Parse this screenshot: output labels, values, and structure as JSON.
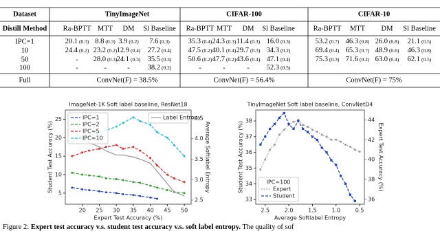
{
  "table": {
    "corner": "Dataset",
    "groups": [
      "TinyImageNet",
      "CIFAR-100",
      "CIFAR-10"
    ],
    "method_label": "Distill Method",
    "methods": [
      "Ra-BPTT",
      "MTT",
      "DM",
      "Sl Baseline",
      "Ra-BPTT",
      "MTT",
      "DM",
      "Sl Baseline",
      "Ra-BPTT",
      "MTT",
      "DM",
      "Sl Baseline"
    ],
    "rows": [
      {
        "label": "IPC=1",
        "cells": [
          [
            "20.1",
            "(0.3)"
          ],
          [
            "8.8",
            "(0.3)"
          ],
          [
            "3.9",
            "(0.2)"
          ],
          [
            "7.6",
            "(0.3)"
          ],
          [
            "35.3",
            "(0.4)"
          ],
          [
            "24.3",
            "(0.3)"
          ],
          [
            "11.4",
            "(0.3)"
          ],
          [
            "16.0",
            "(0.3)"
          ],
          [
            "53.2",
            "(0.7)"
          ],
          [
            "46.3",
            "(0.8)"
          ],
          [
            "26.0",
            "(0.8)"
          ],
          [
            "21.1",
            "(0.5)"
          ]
        ]
      },
      {
        "label": "10",
        "cells": [
          [
            "24.4",
            "(0.2)"
          ],
          [
            "23.2",
            "(0.2)"
          ],
          [
            "12.9",
            "(0.4)"
          ],
          [
            "27.2",
            "(0.4)"
          ],
          [
            "47.5",
            "(0.2)"
          ],
          [
            "40.1",
            "(0.4)"
          ],
          [
            "29.7",
            "(0.3)"
          ],
          [
            "34.3",
            "(0.2)"
          ],
          [
            "69.4",
            "(0.4)"
          ],
          [
            "65.3",
            "(0.7)"
          ],
          [
            "48.9",
            "(0.6)"
          ],
          [
            "46.3",
            "(0.8)"
          ]
        ]
      },
      {
        "label": "50",
        "cells": [
          "-",
          [
            "28.0",
            "(0.3)"
          ],
          [
            "24.1",
            "(0.3)"
          ],
          [
            "35.5",
            "(0.3)"
          ],
          [
            "50.6",
            "(0.2)"
          ],
          [
            "47.7",
            "(0.2)"
          ],
          [
            "43.6",
            "(0.4)"
          ],
          [
            "47.1",
            "(0.4)"
          ],
          [
            "75.3",
            "(0.3)"
          ],
          [
            "71.6",
            "(0.2)"
          ],
          [
            "63.0",
            "(0.4)"
          ],
          [
            "62.1",
            "(0.5)"
          ]
        ]
      },
      {
        "label": "100",
        "cells": [
          "-",
          "-",
          "-",
          [
            "38.2",
            "(0.2)"
          ],
          "-",
          "-",
          "-",
          [
            "52.3",
            "(0.5)"
          ],
          null,
          null,
          null,
          null
        ]
      }
    ],
    "full": {
      "label": "Full",
      "cells": [
        "ConvNet(F) = 38.5%",
        "ConvNet(F) = 56.4%",
        "ConvNet(F) = 75%"
      ]
    }
  },
  "chart_data": [
    {
      "type": "line",
      "title": "ImageNet-1K Soft label baseline, ResNet18",
      "xlabel": "Expert Test Accuracy (%)",
      "ylabel": "Student Test Accuracy (%)",
      "y2label": "Average Softlabel Entropy",
      "xlim": [
        15,
        52
      ],
      "xticks": [
        20,
        25,
        30,
        35,
        40,
        45,
        50
      ],
      "ylim": [
        2,
        27.5
      ],
      "yticks": [
        5,
        10,
        15,
        20,
        25
      ],
      "y2lim": [
        2.4,
        4.7
      ],
      "y2ticks": [
        2.5,
        {
          "value": 3,
          "label": "3.0"
        },
        3.5,
        {
          "value": 4,
          "label": "4.0"
        },
        4.5
      ],
      "y2color": "#888888",
      "legend": "upper left",
      "y2_legend": "upper right",
      "series": [
        {
          "name": "IPC=1",
          "color": "#1f3fbf",
          "marker": "o",
          "dash": "--",
          "x": [
            17,
            20,
            22,
            25,
            27,
            30,
            32,
            35,
            37,
            40,
            42
          ],
          "values": [
            6.5,
            6.0,
            5.8,
            5.5,
            5.2,
            5.0,
            4.7,
            4.5,
            4.2,
            3.8,
            3.5
          ]
        },
        {
          "name": "IPC=2",
          "color": "#2ca02c",
          "marker": "o",
          "dash": "--",
          "x": [
            17,
            20,
            22,
            25,
            27,
            30,
            32,
            35,
            37,
            40,
            42,
            45,
            47,
            50
          ],
          "values": [
            10.5,
            10,
            9.8,
            9.5,
            9,
            8.8,
            8.5,
            8,
            7.8,
            7,
            6.5,
            5.8,
            5.3,
            5
          ]
        },
        {
          "name": "IPC=5",
          "color": "#e3242b",
          "marker": "o",
          "dash": "--",
          "x": [
            17,
            20,
            22,
            25,
            27,
            30,
            32,
            35,
            37,
            40,
            42,
            45,
            47,
            50
          ],
          "values": [
            15,
            16,
            16.5,
            17,
            17.5,
            18,
            17,
            17.5,
            16.5,
            14.5,
            12.5,
            10,
            9,
            8
          ]
        },
        {
          "name": "IPC=10",
          "color": "#17becf",
          "marker": "o",
          "dash": "--",
          "x": [
            17,
            20,
            22,
            25,
            27,
            30,
            32,
            35,
            37,
            40,
            42,
            45,
            47,
            50
          ],
          "values": [
            19,
            20,
            20.5,
            21.5,
            22,
            23,
            24,
            25.5,
            24.5,
            23.5,
            21.5,
            20,
            18,
            15
          ]
        },
        {
          "name": "Label Entropy",
          "color": "#999999",
          "axis": "y2",
          "x": [
            17,
            20,
            22,
            25,
            27,
            30,
            32,
            35,
            37,
            40,
            42,
            45,
            47,
            50
          ],
          "values": [
            4.2,
            4.0,
            3.9,
            3.8,
            3.7,
            3.6,
            3.6,
            3.55,
            3.5,
            3.4,
            3.2,
            2.9,
            2.7,
            2.6
          ]
        }
      ]
    },
    {
      "type": "line",
      "title": "TinyImageNet Soft label baseline, ConvNetD4",
      "xlabel": "Average Softlabel Entropy",
      "ylabel": "Student Test Accuracy (%)",
      "y2label": "Expert Test Accuracy (%)",
      "xlim": [
        2.7,
        0.4
      ],
      "xticks": [
        2.5,
        {
          "value": 2,
          "label": "2.0"
        },
        1.5,
        {
          "value": 1,
          "label": "1.0"
        },
        0.5
      ],
      "ylim": [
        32.7,
        38.7
      ],
      "yticks": [
        33,
        34,
        35,
        36,
        37,
        38
      ],
      "y2lim": [
        35.5,
        45
      ],
      "y2ticks": [
        36,
        38,
        40,
        42,
        44
      ],
      "y2color": "#888888",
      "legend": "lower left",
      "legend_title": "IPC=100",
      "series": [
        {
          "name": "Expert",
          "color": "#999999",
          "axis": "y2",
          "marker": "o",
          "dash": ":",
          "x": [
            2.6,
            2.5,
            2.4,
            2.3,
            2.2,
            2.1,
            2.0,
            1.9,
            1.8,
            1.7,
            1.6,
            1.5,
            1.4,
            1.3,
            1.2,
            1.1,
            1.0,
            0.9,
            0.8,
            0.7,
            0.6,
            0.5
          ],
          "values": [
            39,
            40,
            41,
            41.5,
            42.5,
            43,
            43.5,
            43.8,
            44,
            43.5,
            43.3,
            43,
            42.8,
            42.5,
            42.3,
            42,
            42,
            41.8,
            41.5,
            41.3,
            41,
            40.8
          ]
        },
        {
          "name": "Student",
          "color": "#1f3fbf",
          "marker": "s",
          "dash": "--",
          "x": [
            2.6,
            2.5,
            2.4,
            2.3,
            2.2,
            2.1,
            2.0,
            1.9,
            1.8,
            1.7,
            1.6,
            1.5,
            1.4,
            1.3,
            1.2,
            1.1,
            1.0,
            0.9,
            0.8,
            0.7,
            0.6
          ],
          "values": [
            36.5,
            37,
            37.5,
            37.8,
            38.2,
            38.5,
            37.8,
            37.5,
            38,
            37.5,
            37.3,
            37,
            36.8,
            36.3,
            36,
            35.5,
            35.2,
            34.5,
            34,
            33.3,
            32.9
          ]
        }
      ]
    }
  ],
  "caption": {
    "label": "Figure 2: ",
    "bold": "Expert test accuracy v.s. student test accuracy v.s. soft label entropy.",
    "rest": " The quality of sof"
  }
}
